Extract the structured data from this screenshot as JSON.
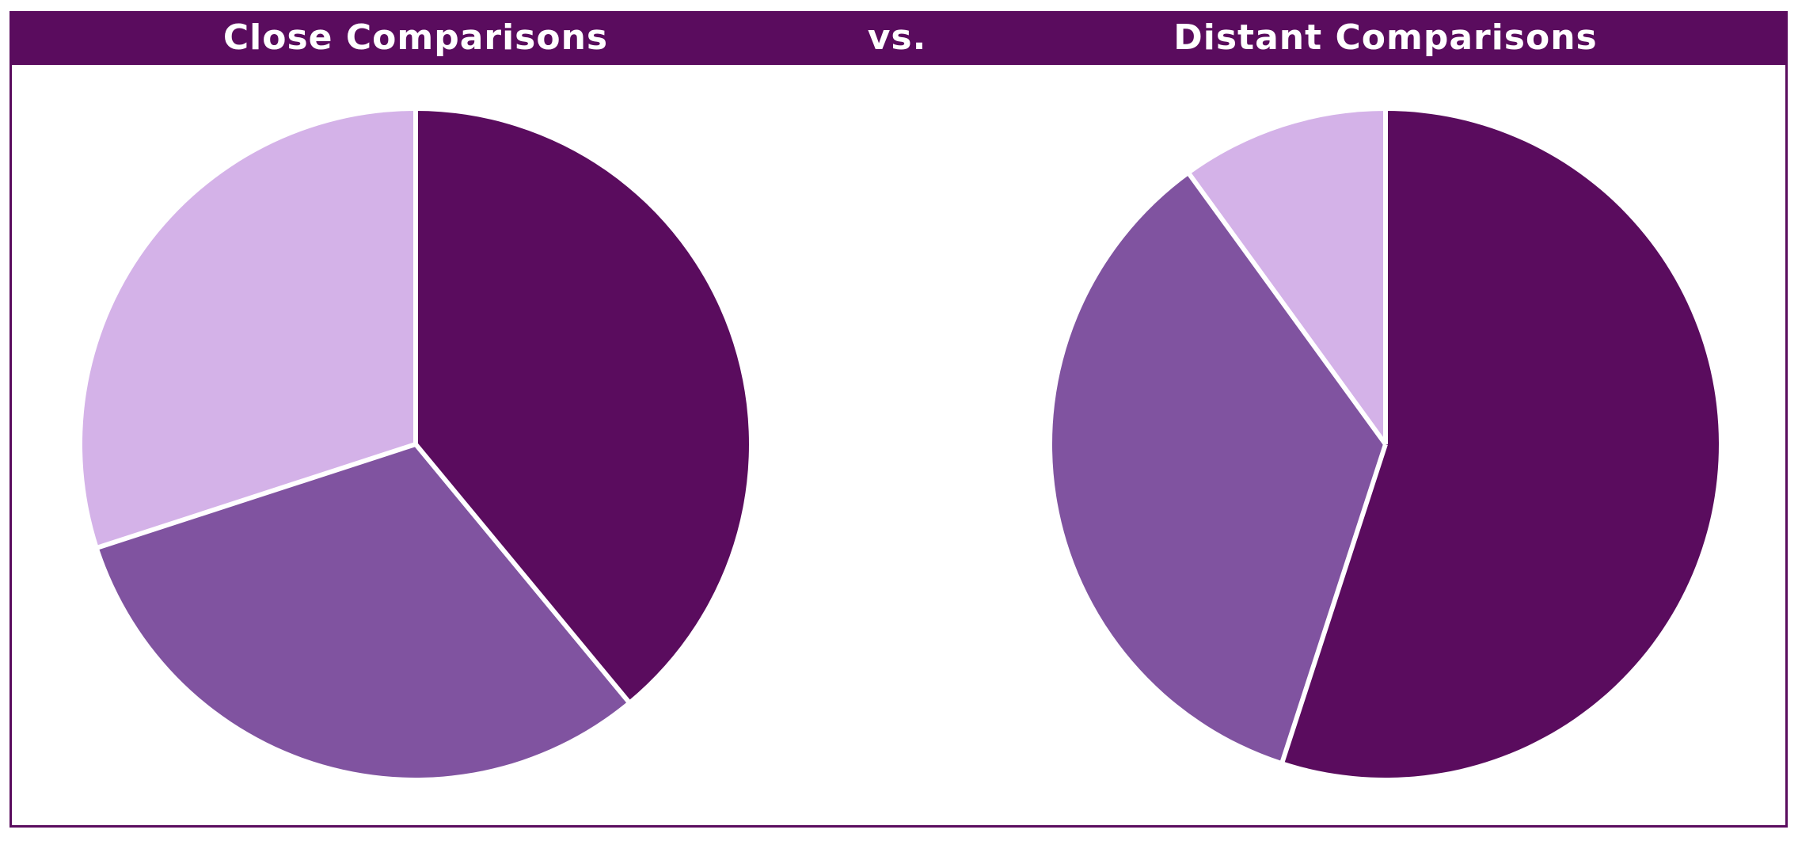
{
  "header": {
    "left_title": "Close Comparisons",
    "vs_label": "vs.",
    "right_title": "Distant Comparisons"
  },
  "colors": {
    "frame": "#5a0c5e",
    "header_bg": "#5a0c5e",
    "header_text": "#ffffff",
    "slice_dark": "#5a0c5e",
    "slice_medium": "#8053a0",
    "slice_light": "#d4b2e8",
    "separator": "#ffffff"
  },
  "chart_data": [
    {
      "type": "pie",
      "title": "Close Comparisons",
      "start_angle_deg": 0,
      "direction": "clockwise",
      "slices": [
        {
          "value": 39,
          "color": "#5a0c5e"
        },
        {
          "value": 31,
          "color": "#8053a0"
        },
        {
          "value": 30,
          "color": "#d4b2e8"
        }
      ]
    },
    {
      "type": "pie",
      "title": "Distant Comparisons",
      "start_angle_deg": 0,
      "direction": "clockwise",
      "slices": [
        {
          "value": 55,
          "color": "#5a0c5e"
        },
        {
          "value": 35,
          "color": "#8053a0"
        },
        {
          "value": 10,
          "color": "#d4b2e8"
        }
      ]
    }
  ]
}
